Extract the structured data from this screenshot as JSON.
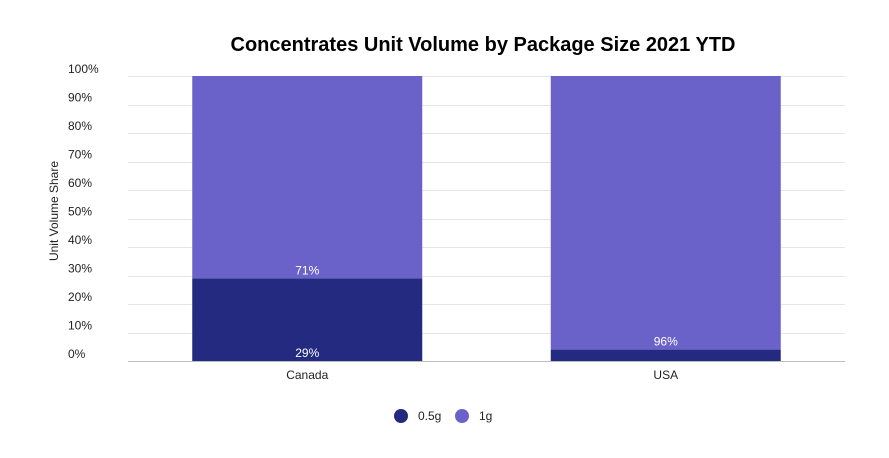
{
  "chart_data": {
    "type": "bar",
    "stacked": true,
    "title": "Concentrates Unit Volume by Package Size 2021 YTD",
    "xlabel": "",
    "ylabel": "Unit Volume Share",
    "categories": [
      "Canada",
      "USA"
    ],
    "series": [
      {
        "name": "0.5g",
        "color": "#232a80",
        "values": [
          29,
          4
        ]
      },
      {
        "name": "1g",
        "color": "#6a62c8",
        "values": [
          71,
          96
        ]
      }
    ],
    "data_labels": [
      {
        "category": "Canada",
        "series": "0.5g",
        "text": "29%"
      },
      {
        "category": "Canada",
        "series": "1g",
        "text": "71%"
      },
      {
        "category": "USA",
        "series": "1g",
        "text": "96%"
      }
    ],
    "ylim": [
      0,
      100
    ],
    "yticks": [
      0,
      10,
      20,
      30,
      40,
      50,
      60,
      70,
      80,
      90,
      100
    ],
    "ytick_labels": [
      "0%",
      "10%",
      "20%",
      "30%",
      "40%",
      "50%",
      "60%",
      "70%",
      "80%",
      "90%",
      "100%"
    ],
    "grid": true,
    "legend_position": "bottom"
  }
}
